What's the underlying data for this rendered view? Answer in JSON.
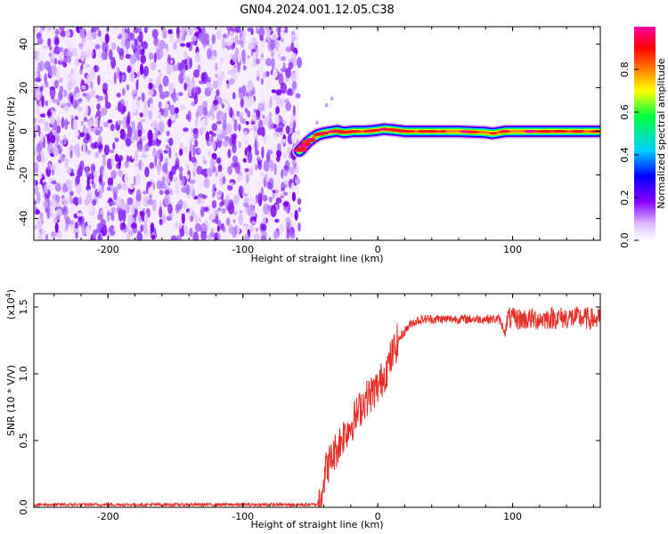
{
  "figure": {
    "title": "GN04.2024.001.12.05.C38"
  },
  "chart_data": [
    {
      "type": "heatmap",
      "title": "GN04.2024.001.12.05.C38",
      "xlabel": "Height of straight line (km)",
      "ylabel": "Frequency (Hz)",
      "xlim": [
        -255,
        165
      ],
      "ylim": [
        -50,
        48
      ],
      "x_ticks": [
        -200,
        -100,
        0,
        100
      ],
      "y_ticks": [
        -40,
        -20,
        0,
        20,
        40
      ],
      "x_tick_labels": [
        "-200",
        "-100",
        "0",
        "100"
      ],
      "y_tick_labels": [
        "-40",
        "-20",
        "0",
        "20",
        "40"
      ],
      "noise_region_x": [
        -255,
        -58
      ],
      "signal_trace": [
        {
          "x": -58,
          "y": -9
        },
        {
          "x": -55,
          "y": -7
        },
        {
          "x": -52,
          "y": -5
        },
        {
          "x": -48,
          "y": -3
        },
        {
          "x": -44,
          "y": -1.5
        },
        {
          "x": -40,
          "y": -0.8
        },
        {
          "x": -35,
          "y": -0.3
        },
        {
          "x": -30,
          "y": 0.2
        },
        {
          "x": -25,
          "y": -0.5
        },
        {
          "x": -18,
          "y": 0
        },
        {
          "x": -10,
          "y": 0
        },
        {
          "x": -3,
          "y": 0.3
        },
        {
          "x": 5,
          "y": 1
        },
        {
          "x": 12,
          "y": 0.6
        },
        {
          "x": 20,
          "y": 0
        },
        {
          "x": 40,
          "y": 0
        },
        {
          "x": 60,
          "y": 0
        },
        {
          "x": 80,
          "y": -0.5
        },
        {
          "x": 85,
          "y": -1
        },
        {
          "x": 95,
          "y": 0
        },
        {
          "x": 120,
          "y": 0
        },
        {
          "x": 140,
          "y": 0
        },
        {
          "x": 165,
          "y": 0
        }
      ],
      "grid": false,
      "grid_label": "off",
      "colorbar": {
        "label": "Normalized spectral amplitude",
        "range": [
          0.0,
          1.0
        ],
        "ticks": [
          0.0,
          0.2,
          0.4,
          0.6,
          0.8
        ],
        "tick_labels": [
          "0.0",
          "0.2",
          "0.4",
          "0.6",
          "0.8"
        ],
        "colormap": [
          "#ffffff",
          "#d9b8ff",
          "#8a00ff",
          "#0000ff",
          "#00d0ff",
          "#00ff40",
          "#ffff00",
          "#ff8000",
          "#ff0000",
          "#ff00a0"
        ]
      },
      "noise_colors": [
        "#f3e6ff",
        "#e2c6ff",
        "#caa0ff",
        "#a868ff",
        "#8a30ff",
        "#7a00f0"
      ]
    },
    {
      "type": "line",
      "xlabel": "Height of straight line (km)",
      "ylabel": "SNR (10 * V/V)",
      "y_scale_label": "(x10",
      "y_scale_exponent": "4",
      "y_scale_close": ")",
      "xlim": [
        -255,
        165
      ],
      "ylim": [
        0,
        1.6
      ],
      "x_ticks": [
        -200,
        -100,
        0,
        100
      ],
      "y_ticks": [
        0.0,
        0.5,
        1.0,
        1.5
      ],
      "x_tick_labels": [
        "-200",
        "-100",
        "0",
        "100"
      ],
      "y_tick_labels": [
        "0.0",
        "0.5",
        "1.0",
        "1.5"
      ],
      "line_color": "#e8302a",
      "series": [
        {
          "x": [
            -255,
            -200,
            -150,
            -100,
            -60,
            -45,
            -42,
            -38,
            -35,
            -30,
            -25,
            -20,
            -15,
            -10,
            -5,
            0,
            5,
            10,
            15,
            20,
            25,
            30,
            35,
            40,
            50,
            60,
            70,
            80,
            90,
            95,
            96,
            100,
            110,
            120,
            130,
            140,
            150,
            160,
            165
          ],
          "values": [
            0.02,
            0.02,
            0.02,
            0.02,
            0.02,
            0.02,
            0.12,
            0.3,
            0.35,
            0.45,
            0.55,
            0.62,
            0.7,
            0.8,
            0.85,
            0.9,
            1.0,
            1.12,
            1.25,
            1.32,
            1.38,
            1.4,
            1.41,
            1.41,
            1.41,
            1.41,
            1.41,
            1.41,
            1.41,
            1.3,
            1.42,
            1.41,
            1.41,
            1.41,
            1.42,
            1.42,
            1.42,
            1.41,
            1.41
          ]
        }
      ]
    }
  ]
}
